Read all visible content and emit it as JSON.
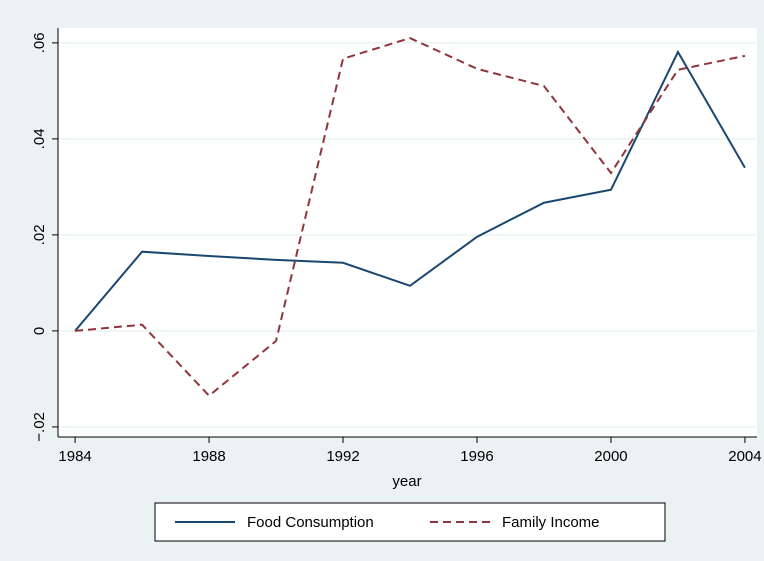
{
  "chart_data": {
    "type": "line",
    "x_label": "year",
    "x": [
      1984,
      1986,
      1988,
      1990,
      1992,
      1994,
      1996,
      1998,
      2000,
      2002,
      2004
    ],
    "series": [
      {
        "name": "Food Consumption",
        "color": "#1a476f",
        "dash": false,
        "values": [
          0,
          0.0165,
          0.0156,
          0.0148,
          0.0142,
          0.0094,
          0.0196,
          0.0267,
          0.0294,
          0.0581,
          0.034
        ]
      },
      {
        "name": "Family Income",
        "color": "#90353b",
        "dash": true,
        "values": [
          0,
          0.0013,
          -0.0135,
          -0.0021,
          0.0567,
          0.061,
          0.0546,
          0.051,
          0.0329,
          0.0544,
          0.0573
        ]
      }
    ],
    "xlim": [
      1983.49,
      2004.36
    ],
    "ylim": [
      -0.0221,
      0.0631
    ],
    "xticks": [
      1984,
      1988,
      1992,
      1996,
      2000,
      2004
    ],
    "yticks": [
      {
        "value": -0.02,
        "label": "−.02"
      },
      0,
      {
        "value": 0.02,
        "label": ".02"
      },
      {
        "value": 0.04,
        "label": ".04"
      },
      {
        "value": 0.06,
        "label": ".06"
      }
    ],
    "grid": true,
    "legend": "bottom"
  }
}
